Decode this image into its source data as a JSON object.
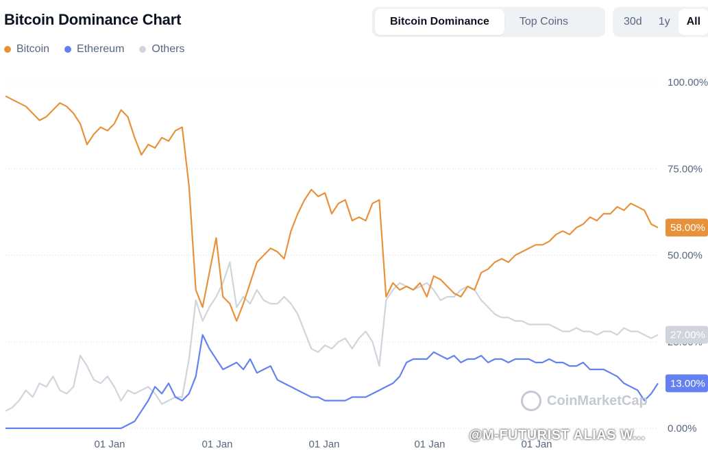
{
  "header": {
    "title": "Bitcoin Dominance Chart",
    "tabs": [
      {
        "label": "Bitcoin Dominance",
        "active": true
      },
      {
        "label": "Top Coins",
        "active": false
      }
    ],
    "ranges": [
      {
        "label": "30d",
        "active": false
      },
      {
        "label": "1y",
        "active": false
      },
      {
        "label": "All",
        "active": true
      }
    ]
  },
  "watermark": "CoinMarketCap",
  "overlay_text": "@M-FUTURIST ALIAS W...",
  "chart_data": {
    "type": "line",
    "title": "Bitcoin Dominance Chart",
    "legend_position": "top-left",
    "grid": true,
    "x_tick_labels": [
      "01 Jan",
      "01 Jan",
      "01 Jan",
      "01 Jan",
      "01 Jan"
    ],
    "y_tick_labels": [
      "100.00%",
      "75.00%",
      "50.00%",
      "25.00%",
      "0.00%"
    ],
    "ylim": [
      0,
      100
    ],
    "y_unit": "%",
    "xlim": [
      0,
      96
    ],
    "series": [
      {
        "name": "Bitcoin",
        "color": "#e8913b",
        "end_label": "58.00%",
        "x": [
          0,
          1,
          2,
          3,
          4,
          5,
          6,
          7,
          8,
          9,
          10,
          11,
          12,
          13,
          14,
          15,
          16,
          17,
          18,
          19,
          20,
          21,
          22,
          23,
          24,
          25,
          26,
          27,
          28,
          29,
          30,
          31,
          32,
          33,
          34,
          35,
          36,
          37,
          38,
          39,
          40,
          41,
          42,
          43,
          44,
          45,
          46,
          47,
          48,
          49,
          50,
          51,
          52,
          53,
          54,
          55,
          56,
          57,
          58,
          59,
          60,
          61,
          62,
          63,
          64,
          65,
          66,
          67,
          68,
          69,
          70,
          71,
          72,
          73,
          74,
          75,
          76,
          77,
          78,
          79,
          80,
          81,
          82,
          83,
          84,
          85,
          86,
          87,
          88,
          89,
          90,
          91,
          92,
          93,
          94,
          95,
          96
        ],
        "values": [
          96,
          95,
          94,
          93,
          91,
          89,
          90,
          92,
          94,
          93,
          91,
          88,
          82,
          85,
          87,
          86,
          88,
          92,
          90,
          84,
          79,
          82,
          81,
          84,
          83,
          86,
          87,
          70,
          40,
          35,
          45,
          55,
          38,
          36,
          31,
          36,
          42,
          48,
          50,
          52,
          51,
          49,
          57,
          62,
          66,
          69,
          67,
          68,
          62,
          65,
          66,
          60,
          61,
          60,
          65,
          66,
          38,
          42,
          40,
          41,
          40,
          42,
          38,
          44,
          43,
          41,
          39,
          38,
          41,
          40,
          45,
          46,
          48,
          49,
          48,
          50,
          51,
          52,
          53,
          53,
          54,
          56,
          57,
          56,
          58,
          59,
          61,
          60,
          62,
          62,
          64,
          63,
          65,
          64,
          63,
          59,
          58
        ]
      },
      {
        "name": "Ethereum",
        "color": "#6381f0",
        "end_label": "13.00%",
        "x": [
          0,
          1,
          2,
          3,
          4,
          5,
          6,
          7,
          8,
          9,
          10,
          11,
          12,
          13,
          14,
          15,
          16,
          17,
          18,
          19,
          20,
          21,
          22,
          23,
          24,
          25,
          26,
          27,
          28,
          29,
          30,
          31,
          32,
          33,
          34,
          35,
          36,
          37,
          38,
          39,
          40,
          41,
          42,
          43,
          44,
          45,
          46,
          47,
          48,
          49,
          50,
          51,
          52,
          53,
          54,
          55,
          56,
          57,
          58,
          59,
          60,
          61,
          62,
          63,
          64,
          65,
          66,
          67,
          68,
          69,
          70,
          71,
          72,
          73,
          74,
          75,
          76,
          77,
          78,
          79,
          80,
          81,
          82,
          83,
          84,
          85,
          86,
          87,
          88,
          89,
          90,
          91,
          92,
          93,
          94,
          95,
          96
        ],
        "values": [
          0,
          0,
          0,
          0,
          0,
          0,
          0,
          0,
          0,
          0,
          0,
          0,
          0,
          0,
          0,
          0,
          0,
          0,
          1,
          2,
          5,
          8,
          12,
          10,
          13,
          9,
          8,
          10,
          15,
          27,
          23,
          20,
          17,
          18,
          19,
          17,
          20,
          16,
          17,
          18,
          14,
          13,
          12,
          11,
          10,
          9,
          9,
          8,
          8,
          8,
          8,
          9,
          9,
          9,
          10,
          11,
          12,
          13,
          15,
          19,
          20,
          20,
          20,
          22,
          21,
          20,
          21,
          19,
          20,
          20,
          21,
          19,
          20,
          20,
          19,
          20,
          20,
          20,
          19,
          19,
          20,
          19,
          19,
          18,
          18,
          19,
          17,
          17,
          17,
          16,
          15,
          13,
          12,
          11,
          8,
          10,
          13
        ]
      },
      {
        "name": "Others",
        "color": "#cfd4dd",
        "end_label": "27.00%",
        "x": [
          0,
          1,
          2,
          3,
          4,
          5,
          6,
          7,
          8,
          9,
          10,
          11,
          12,
          13,
          14,
          15,
          16,
          17,
          18,
          19,
          20,
          21,
          22,
          23,
          24,
          25,
          26,
          27,
          28,
          29,
          30,
          31,
          32,
          33,
          34,
          35,
          36,
          37,
          38,
          39,
          40,
          41,
          42,
          43,
          44,
          45,
          46,
          47,
          48,
          49,
          50,
          51,
          52,
          53,
          54,
          55,
          56,
          57,
          58,
          59,
          60,
          61,
          62,
          63,
          64,
          65,
          66,
          67,
          68,
          69,
          70,
          71,
          72,
          73,
          74,
          75,
          76,
          77,
          78,
          79,
          80,
          81,
          82,
          83,
          84,
          85,
          86,
          87,
          88,
          89,
          90,
          91,
          92,
          93,
          94,
          95,
          96
        ],
        "values": [
          5,
          6,
          8,
          11,
          9,
          13,
          12,
          15,
          11,
          10,
          12,
          21,
          18,
          14,
          13,
          15,
          12,
          8,
          11,
          10,
          11,
          12,
          10,
          7,
          8,
          9,
          9,
          20,
          37,
          31,
          35,
          38,
          42,
          48,
          35,
          38,
          36,
          40,
          37,
          36,
          36,
          38,
          36,
          33,
          28,
          23,
          22,
          24,
          23,
          25,
          26,
          23,
          26,
          28,
          25,
          18,
          37,
          40,
          42,
          41,
          40,
          41,
          42,
          40,
          37,
          38,
          38,
          40,
          41,
          40,
          37,
          35,
          33,
          32,
          32,
          31,
          31,
          30,
          30,
          30,
          30,
          29,
          28,
          28,
          29,
          28,
          28,
          27,
          28,
          28,
          27,
          29,
          28,
          28,
          27,
          26,
          27
        ]
      }
    ]
  },
  "colors": {
    "bitcoin": "#e8913b",
    "ethereum": "#6381f0",
    "others": "#cfd4dd",
    "grid": "#d9dde3",
    "axis_text": "#58667e"
  }
}
